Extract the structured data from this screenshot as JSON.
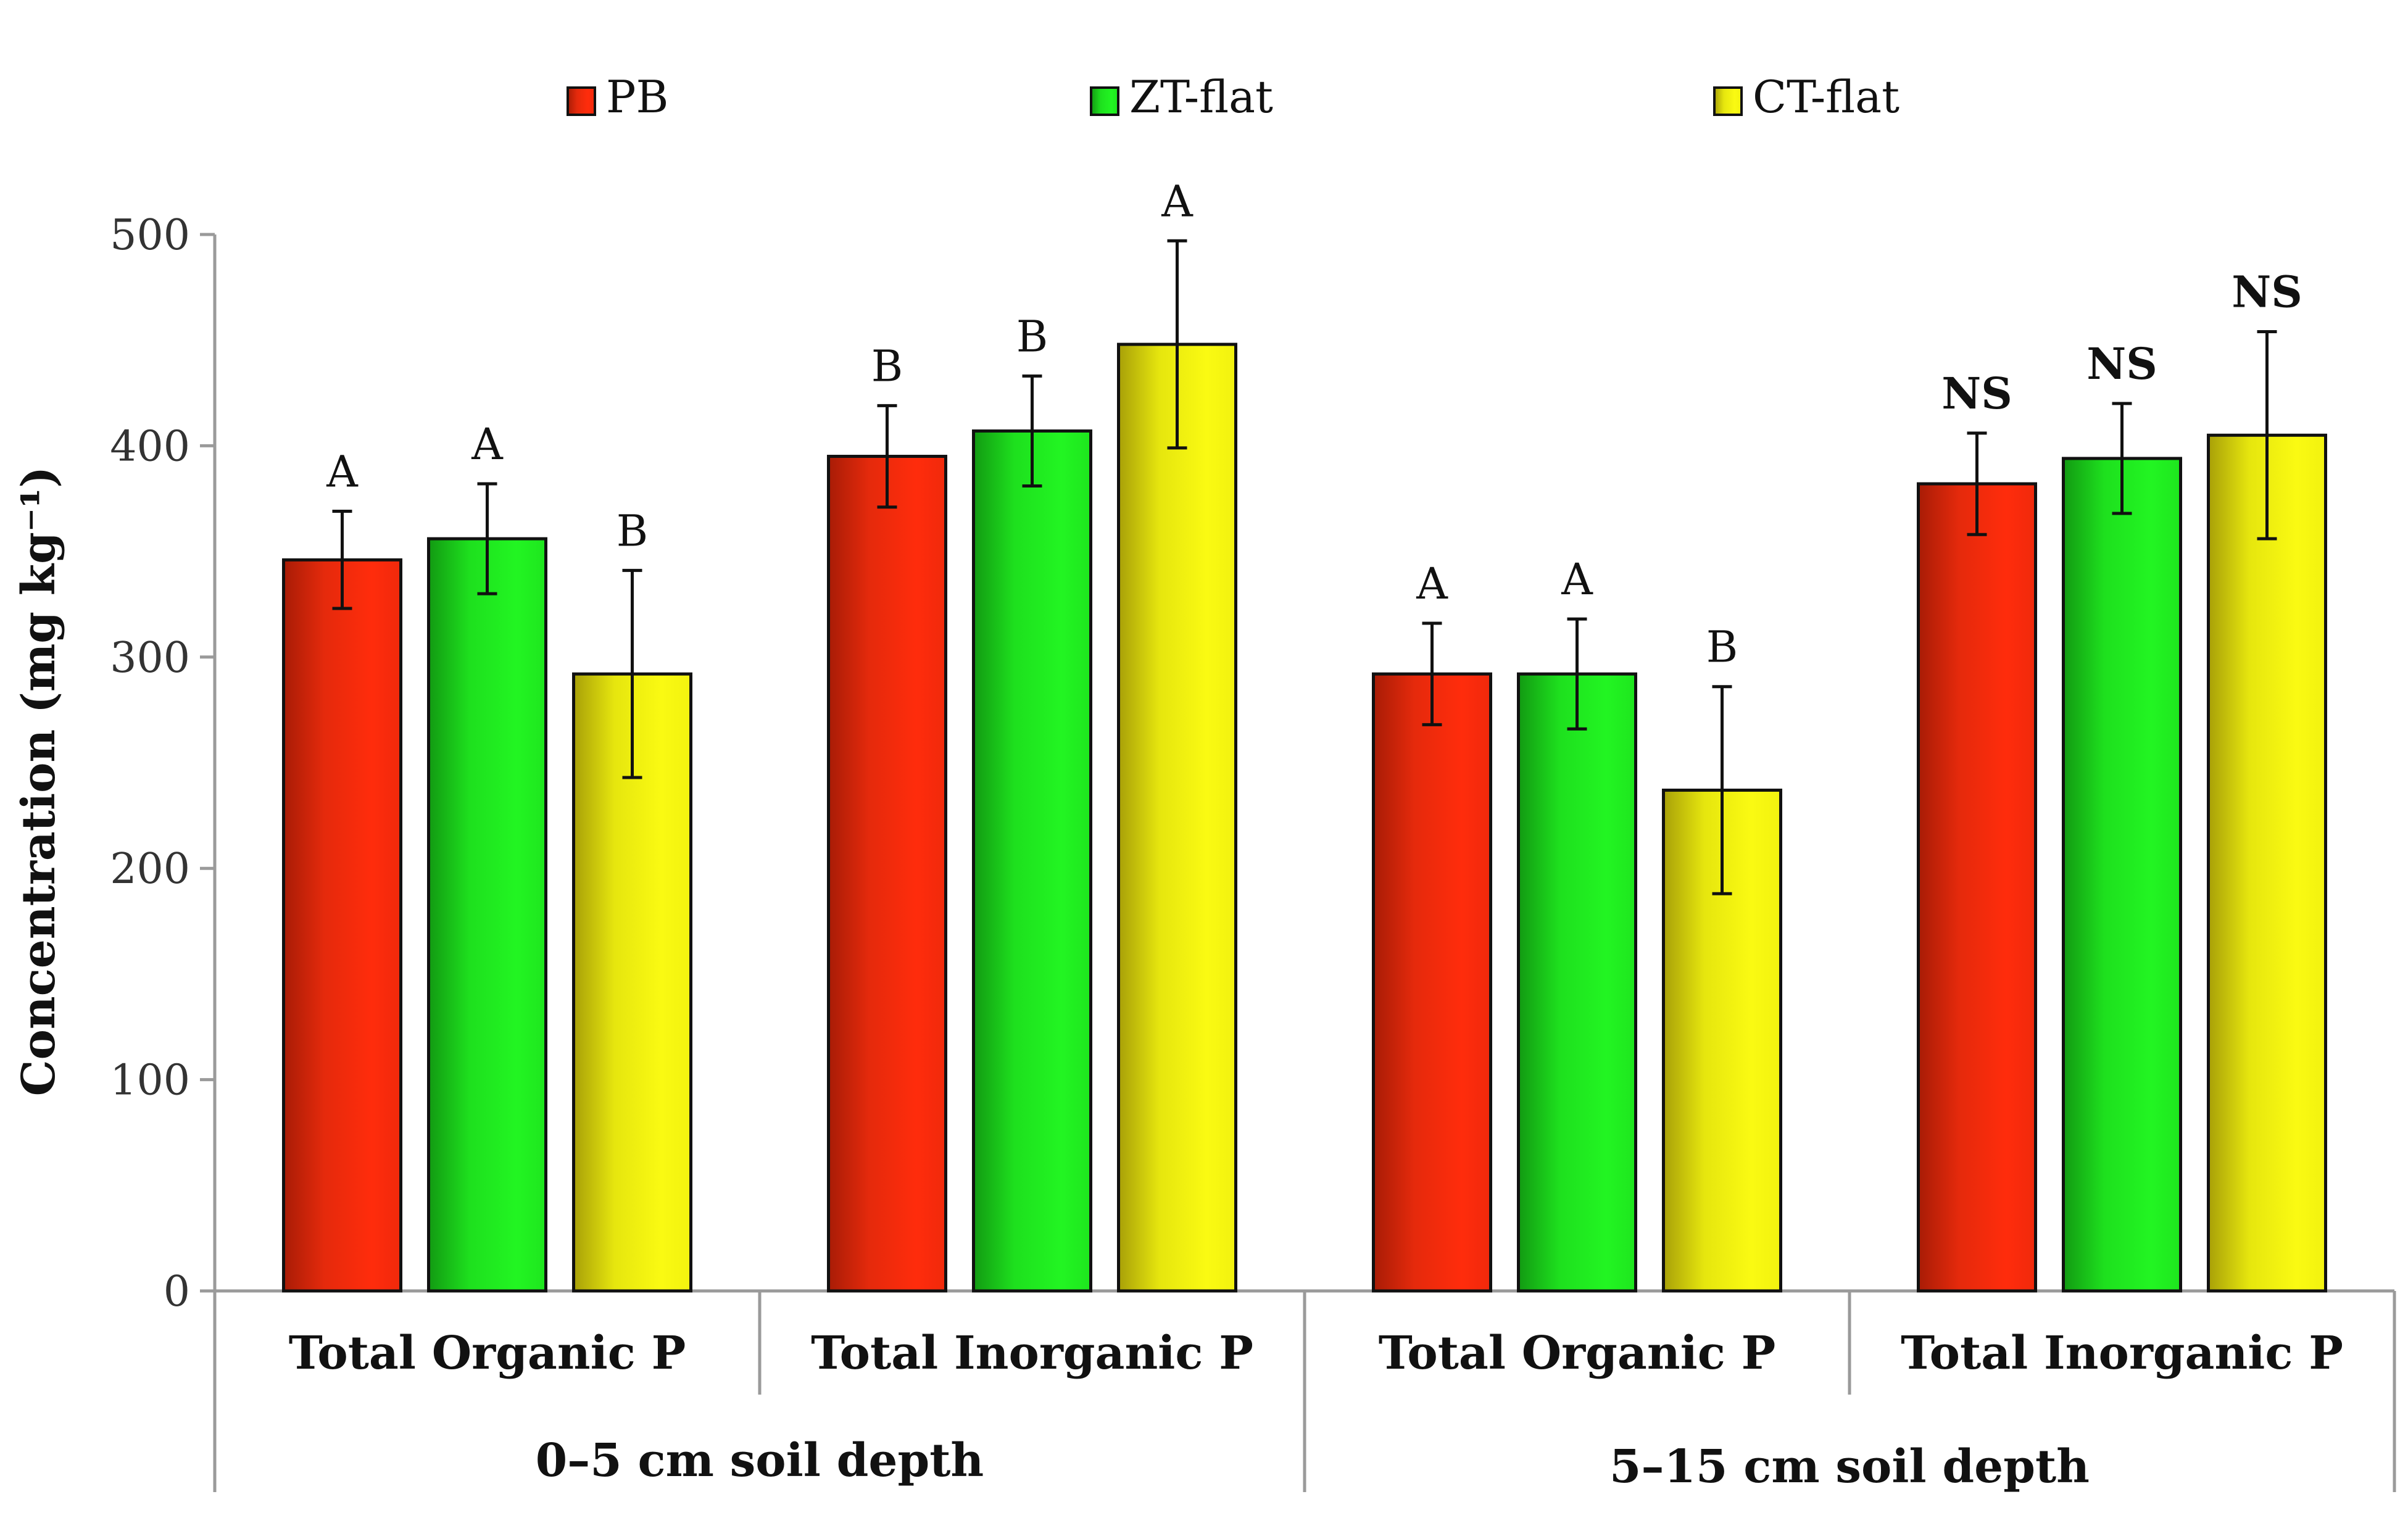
{
  "chart_data": {
    "type": "bar",
    "title": "",
    "ylabel": "Concentration (mg kg⁻¹)",
    "ylim": [
      0,
      500
    ],
    "yticks": [
      0,
      100,
      200,
      300,
      400,
      500
    ],
    "yticks_text": [
      "0",
      "100",
      "200",
      "300",
      "400",
      "500"
    ],
    "legend_position": "top",
    "categories": [
      "Total Organic P",
      "Total Inorganic P",
      "Total Organic P",
      "Total Inorganic P"
    ],
    "groups": [
      "0–5 cm soil depth",
      "5–15 cm soil depth"
    ],
    "series": [
      {
        "name": "PB",
        "color": "#e52a0c",
        "values": [
          346,
          395,
          292,
          382
        ],
        "errors": [
          23,
          24,
          24,
          24
        ],
        "labels": [
          "A",
          "B",
          "A",
          "NS"
        ]
      },
      {
        "name": "ZT-flat",
        "color": "#1ee01e",
        "values": [
          356,
          407,
          292,
          394
        ],
        "errors": [
          26,
          26,
          26,
          26
        ],
        "labels": [
          "A",
          "B",
          "A",
          "NS"
        ]
      },
      {
        "name": "CT-flat",
        "color": "#f2f20f",
        "values": [
          292,
          448,
          237,
          405
        ],
        "errors": [
          49,
          49,
          49,
          49
        ],
        "labels": [
          "B",
          "A",
          "B",
          "NS"
        ]
      }
    ]
  }
}
